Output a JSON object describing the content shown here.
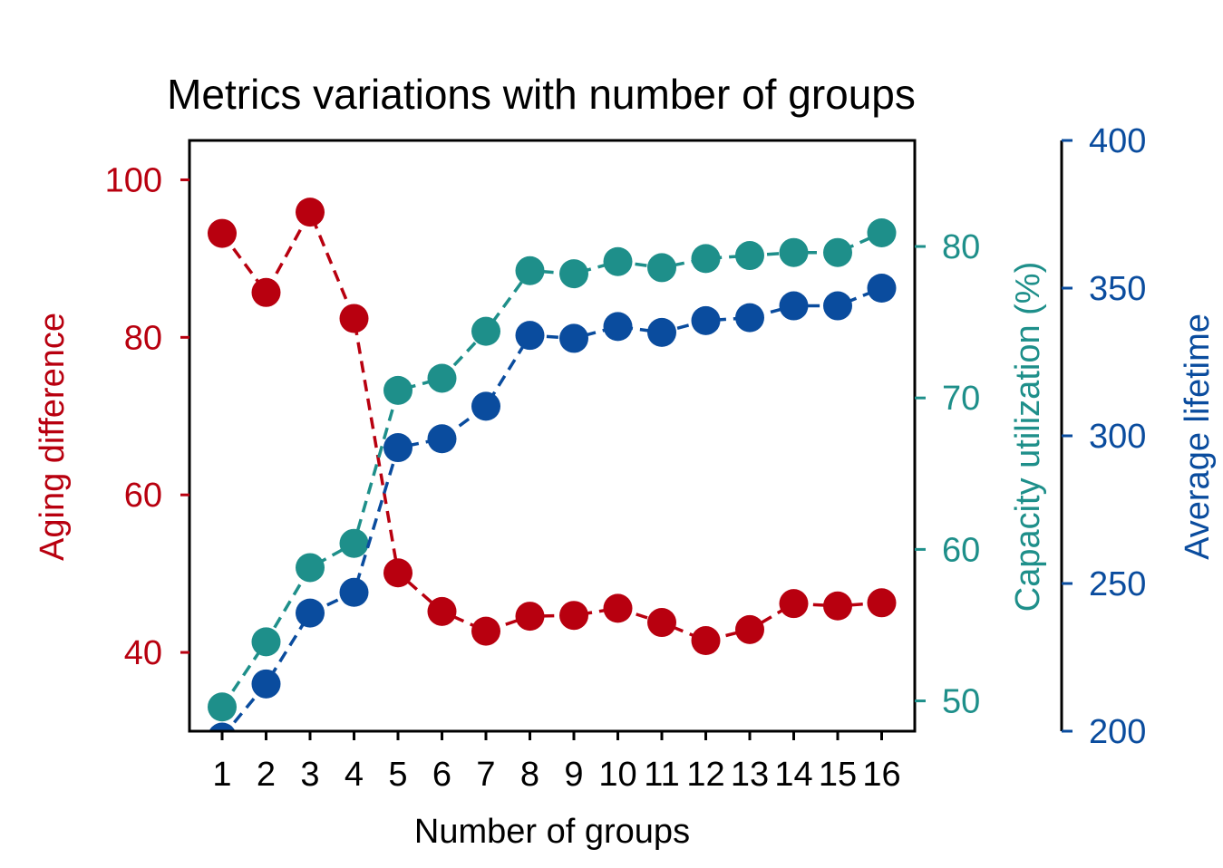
{
  "chart_data": {
    "type": "line",
    "title": "Metrics variations with number of groups",
    "xlabel": "Number of groups",
    "categories": [
      "1",
      "2",
      "3",
      "4",
      "5",
      "6",
      "7",
      "8",
      "9",
      "10",
      "11",
      "12",
      "13",
      "14",
      "15",
      "16"
    ],
    "series": [
      {
        "key": "aging",
        "axis_label": "Aging difference",
        "color": "#b8000f",
        "ylim": [
          30,
          105
        ],
        "yticks": [
          40,
          60,
          80,
          100
        ],
        "values": [
          93.2,
          85.7,
          95.9,
          82.4,
          50.1,
          45.2,
          42.7,
          44.6,
          44.7,
          45.6,
          43.8,
          41.5,
          42.9,
          46.2,
          45.9,
          46.3
        ]
      },
      {
        "key": "capacity",
        "axis_label": "Capacity utilization (%)",
        "color": "#1e8f8a",
        "ylim": [
          48,
          87
        ],
        "yticks": [
          50,
          60,
          70,
          80
        ],
        "values": [
          49.6,
          53.9,
          58.8,
          60.4,
          70.5,
          71.3,
          74.4,
          78.4,
          78.2,
          79.0,
          78.6,
          79.2,
          79.4,
          79.6,
          79.6,
          80.9
        ]
      },
      {
        "key": "lifetime",
        "axis_label": "Average lifetime",
        "color": "#0a4c9e",
        "ylim": [
          200,
          400
        ],
        "yticks": [
          200,
          250,
          300,
          350,
          400
        ],
        "values": [
          198,
          216,
          240,
          247,
          296,
          299,
          310,
          334,
          333,
          337,
          335,
          339,
          340,
          344,
          344,
          350
        ]
      }
    ]
  }
}
